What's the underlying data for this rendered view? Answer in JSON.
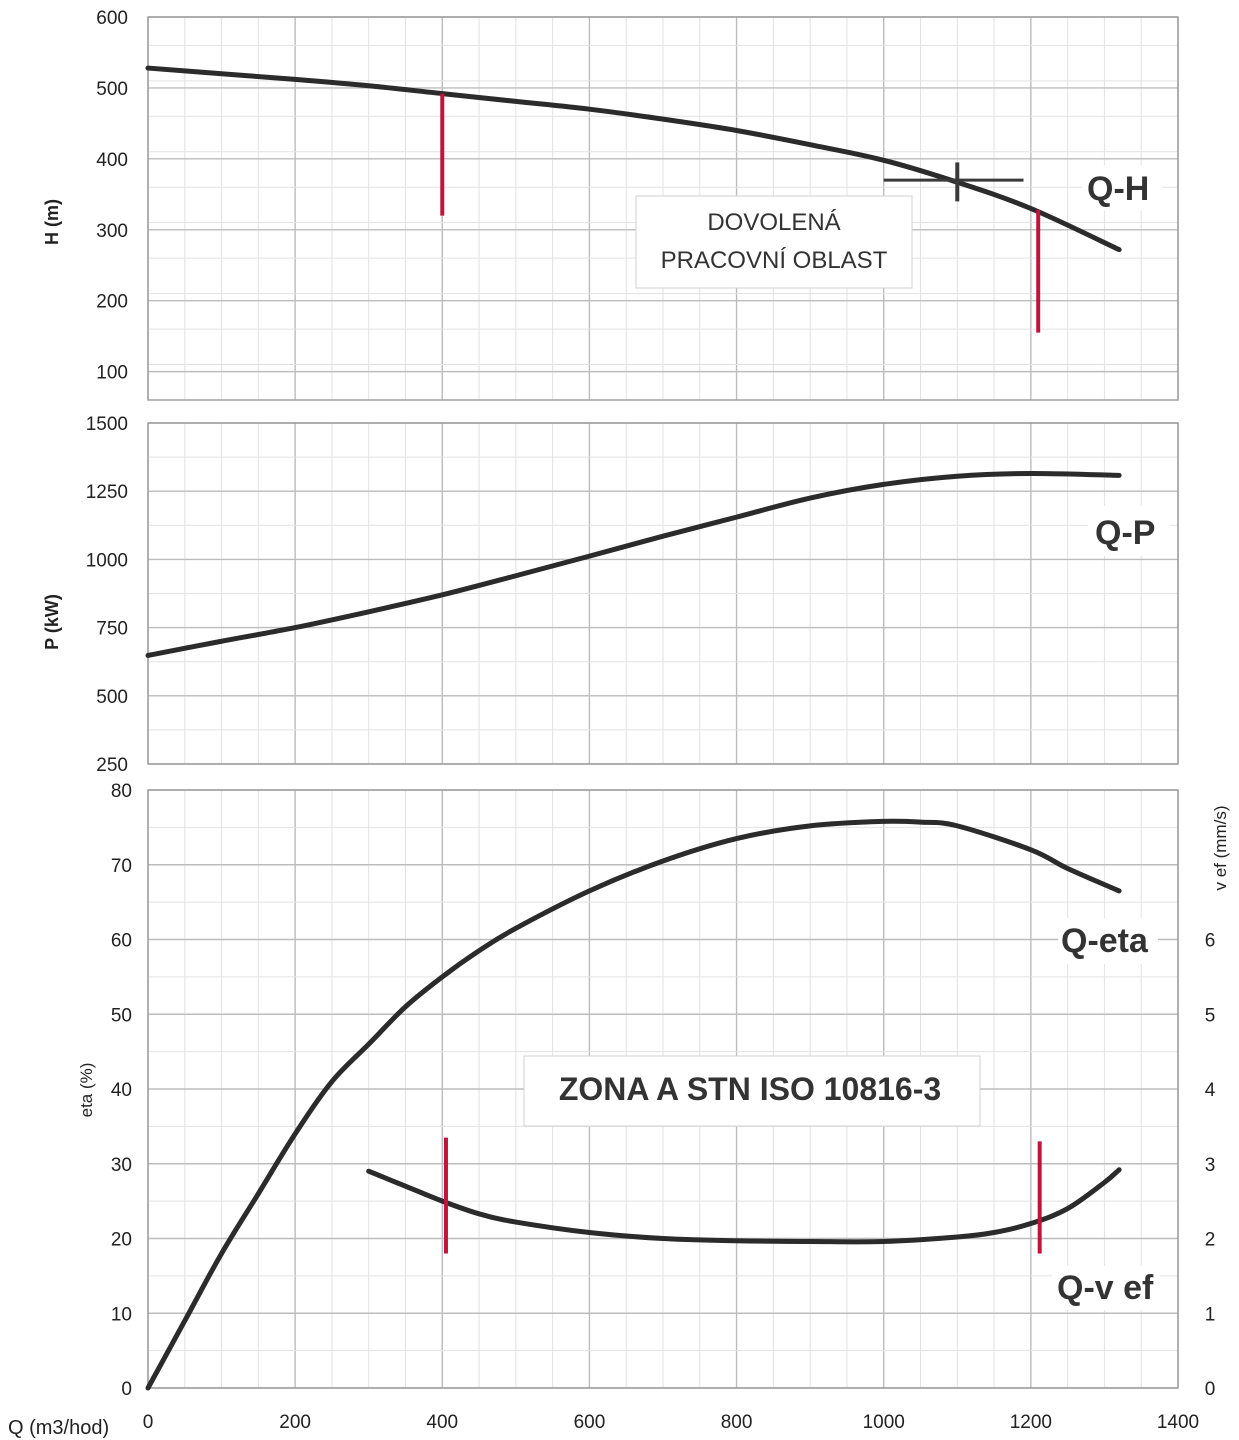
{
  "chart_data": [
    {
      "type": "line",
      "panel": "Q-H",
      "ylabel": "H (m)",
      "ylim": [
        60,
        600
      ],
      "yticks": [
        100,
        200,
        300,
        400,
        500,
        600
      ],
      "xlim": [
        0,
        1400
      ],
      "grid": true,
      "series": [
        {
          "name": "Q-H",
          "x": [
            0,
            100,
            200,
            300,
            400,
            500,
            600,
            700,
            800,
            900,
            1000,
            1100,
            1200,
            1320
          ],
          "y": [
            528,
            520,
            512,
            503,
            492,
            481,
            470,
            456,
            440,
            420,
            398,
            367,
            330,
            272
          ]
        }
      ],
      "markers": {
        "limits": [
          {
            "x": 400,
            "y1": 320,
            "y2": 492
          },
          {
            "x": 1210,
            "y1": 155,
            "y2": 328
          }
        ],
        "operating_point": {
          "x": 1100,
          "y": 370,
          "x1": 1000,
          "x2": 1190,
          "y1": 340,
          "y2": 395
        }
      },
      "annotation": {
        "line1": "DOVOLENÁ",
        "line2": "PRACOVNÍ OBLAST"
      }
    },
    {
      "type": "line",
      "panel": "Q-P",
      "ylabel": "P (kW)",
      "ylim": [
        250,
        1500
      ],
      "yticks": [
        250,
        500,
        750,
        1000,
        1250,
        1500
      ],
      "xlim": [
        0,
        1400
      ],
      "grid": true,
      "series": [
        {
          "name": "Q-P",
          "x": [
            0,
            100,
            200,
            300,
            400,
            500,
            600,
            700,
            800,
            900,
            1000,
            1100,
            1200,
            1320
          ],
          "y": [
            648,
            700,
            750,
            808,
            870,
            940,
            1012,
            1085,
            1155,
            1225,
            1275,
            1305,
            1315,
            1308
          ]
        }
      ]
    },
    {
      "type": "line",
      "panel": "Q-eta / Q-v ef",
      "ylabel": "eta (%)",
      "ylim": [
        0,
        80
      ],
      "yticks": [
        0,
        10,
        20,
        30,
        40,
        50,
        60,
        70,
        80
      ],
      "y2label": "v ef (mm/s)",
      "y2lim": [
        0,
        8
      ],
      "y2ticks": [
        0,
        1,
        2,
        3,
        4,
        5,
        6
      ],
      "xlabel": "Q (m3/hod)",
      "xlim": [
        0,
        1400
      ],
      "xticks": [
        0,
        200,
        400,
        600,
        800,
        1000,
        1200,
        1400
      ],
      "grid": true,
      "series": [
        {
          "name": "Q-eta",
          "x": [
            0,
            50,
            100,
            150,
            200,
            250,
            300,
            350,
            400,
            450,
            500,
            600,
            700,
            800,
            900,
            1000,
            1050,
            1100,
            1200,
            1250,
            1320
          ],
          "y": [
            0,
            9,
            18,
            26,
            34,
            41,
            46,
            51,
            55,
            58.5,
            61.5,
            66.5,
            70.5,
            73.5,
            75.2,
            75.8,
            75.7,
            75.2,
            72,
            69.5,
            66.5
          ]
        },
        {
          "name": "Q-v ef",
          "axis": "right",
          "x": [
            300,
            350,
            400,
            450,
            500,
            600,
            700,
            800,
            900,
            1000,
            1100,
            1150,
            1200,
            1250,
            1300,
            1320
          ],
          "y": [
            2.9,
            2.7,
            2.5,
            2.33,
            2.22,
            2.08,
            2.0,
            1.97,
            1.96,
            1.96,
            2.02,
            2.08,
            2.2,
            2.4,
            2.75,
            2.92
          ]
        }
      ],
      "markers": {
        "limits": [
          {
            "x": 405,
            "y1": 18,
            "y2": 33.5
          },
          {
            "x": 1212,
            "y1": 18,
            "y2": 33
          }
        ]
      },
      "annotation": {
        "text": "ZONA A  STN ISO 10816-3"
      }
    }
  ],
  "colors": {
    "curve": "#2b2b2b",
    "limit": "#c0143c",
    "grid": "#bdbdbd",
    "frame": "#9a9a9a"
  }
}
